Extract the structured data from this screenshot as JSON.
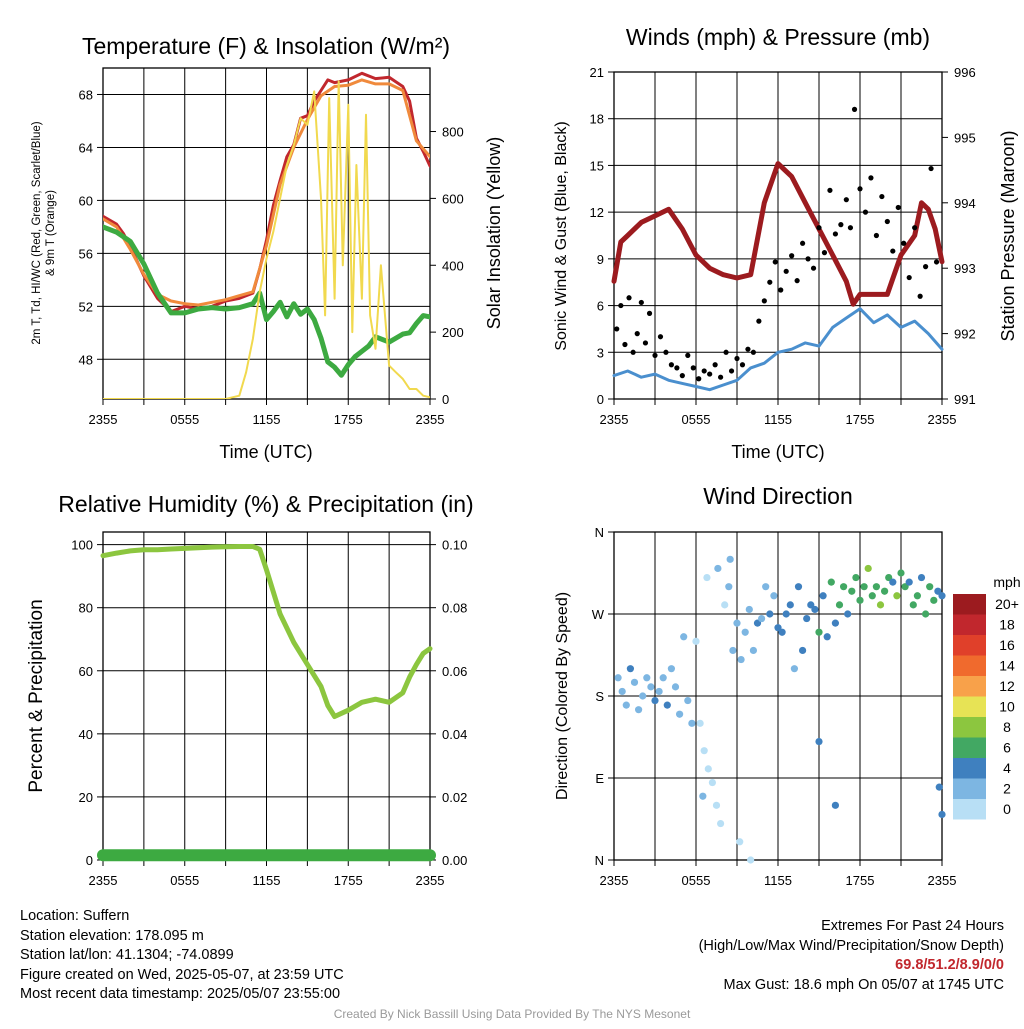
{
  "chart_data": [
    {
      "type": "line",
      "title": "Temperature (F) & Insolation (W/m²)",
      "xlabel": "Time (UTC)",
      "ylabel_lines": [
        "2m T, Td, HI/WC (Red, Green, Scarlet/Blue)",
        "& 9m T (Orange)"
      ],
      "y2label": "Solar Insolation (Yellow)",
      "x_ticks": [
        "2355",
        "0555",
        "1155",
        "1755",
        "2355"
      ],
      "ylim": [
        45,
        70
      ],
      "y_ticks": [
        48,
        52,
        56,
        60,
        64,
        68
      ],
      "y2lim": [
        0,
        990
      ],
      "y2_ticks": [
        0,
        200,
        400,
        600,
        800
      ],
      "x_hours": [
        0,
        24
      ],
      "grid": true,
      "series": [
        {
          "name": "2m T",
          "color": "#c1272d",
          "width": 3,
          "axis": "left",
          "x": [
            0,
            1,
            1.5,
            2,
            3,
            4,
            5,
            6,
            7,
            8,
            9,
            10,
            11,
            11.5,
            12,
            12.5,
            13,
            13.5,
            14,
            14.5,
            15,
            15.5,
            16,
            16.5,
            17,
            18,
            19,
            20,
            21,
            22,
            22.5,
            23,
            23.5,
            24
          ],
          "y": [
            58.8,
            58.2,
            57.5,
            56.5,
            54.3,
            52.6,
            51.6,
            52.0,
            51.8,
            52.0,
            52.4,
            52.6,
            53.0,
            54.8,
            57.0,
            59.6,
            61.5,
            63.3,
            64.2,
            66.2,
            66.4,
            67.5,
            68.3,
            69.1,
            68.9,
            69.1,
            69.6,
            69.2,
            69.3,
            68.6,
            67.5,
            64.7,
            63.7,
            62.6
          ]
        },
        {
          "name": "9m T",
          "color": "#f08a3c",
          "width": 3,
          "axis": "left",
          "x": [
            0,
            1,
            2,
            3,
            4,
            5,
            6,
            7,
            8,
            9,
            10,
            11,
            12,
            13,
            14,
            15,
            16,
            17,
            18,
            19,
            20,
            21,
            22,
            23,
            24
          ],
          "y": [
            58.6,
            58.0,
            56.3,
            54.4,
            52.9,
            52.4,
            52.2,
            52.1,
            52.3,
            52.5,
            52.8,
            53.1,
            56.6,
            61.2,
            64.0,
            66.1,
            67.9,
            68.6,
            68.7,
            69.1,
            68.8,
            68.8,
            68.3,
            64.5,
            63.3
          ]
        },
        {
          "name": "2m Td",
          "color": "#3daa41",
          "width": 5,
          "axis": "left",
          "x": [
            0,
            1,
            2,
            3,
            4,
            5,
            6,
            7,
            8,
            9,
            10,
            11,
            11.5,
            12,
            12.5,
            13,
            13.5,
            14,
            14.5,
            15,
            15.5,
            16,
            16.5,
            17,
            17.5,
            18,
            18.5,
            19,
            19.5,
            20,
            21,
            22,
            22.5,
            23,
            23.5,
            24
          ],
          "y": [
            58.0,
            57.6,
            56.9,
            55.2,
            53.0,
            51.5,
            51.5,
            51.8,
            51.9,
            51.8,
            51.9,
            52.2,
            53.0,
            51.0,
            51.6,
            52.3,
            51.2,
            52.2,
            51.4,
            51.8,
            51.0,
            49.6,
            47.8,
            47.4,
            46.8,
            47.6,
            48.2,
            48.6,
            49.0,
            49.7,
            49.3,
            49.9,
            50.0,
            50.7,
            51.3,
            51.2
          ]
        },
        {
          "name": "Solar Insolation",
          "color": "#f1d94e",
          "width": 2,
          "axis": "right",
          "x": [
            0,
            9,
            10,
            10.5,
            11,
            11.5,
            12,
            12.5,
            13,
            13.5,
            14,
            14.5,
            15,
            15.5,
            16,
            16.3,
            16.6,
            17,
            17.3,
            17.6,
            18,
            18.3,
            18.6,
            19,
            19.3,
            19.6,
            20,
            20.4,
            21,
            21.5,
            22,
            22.5,
            23,
            23.5,
            24
          ],
          "y": [
            0,
            0,
            10,
            80,
            180,
            320,
            420,
            500,
            600,
            700,
            760,
            840,
            820,
            920,
            600,
            250,
            900,
            300,
            950,
            400,
            880,
            200,
            700,
            300,
            850,
            250,
            150,
            400,
            100,
            80,
            60,
            30,
            30,
            10,
            5
          ]
        }
      ]
    },
    {
      "type": "line",
      "title": "Winds (mph) & Pressure (mb)",
      "xlabel": "Time (UTC)",
      "ylabel": "Sonic Wind & Gust (Blue, Black)",
      "y2label": "Station Pressure (Maroon)",
      "x_ticks": [
        "2355",
        "0555",
        "1155",
        "1755",
        "2355"
      ],
      "ylim": [
        0,
        21
      ],
      "y_ticks": [
        0,
        3,
        6,
        9,
        12,
        15,
        18,
        21
      ],
      "y2lim": [
        991,
        996
      ],
      "y2_ticks": [
        991,
        992,
        993,
        994,
        995,
        996
      ],
      "x_hours": [
        0,
        24
      ],
      "grid": true,
      "series": [
        {
          "name": "Sonic Wind",
          "color": "#4a8fce",
          "width": 3,
          "axis": "left",
          "x": [
            0,
            1,
            2,
            3,
            4,
            5,
            6,
            7,
            8,
            9,
            10,
            11,
            12,
            13,
            14,
            15,
            16,
            17,
            18,
            19,
            20,
            21,
            22,
            23,
            24
          ],
          "y": [
            1.5,
            1.8,
            1.4,
            1.6,
            1.2,
            1.0,
            0.8,
            0.6,
            0.9,
            1.2,
            2.0,
            2.3,
            3.0,
            3.2,
            3.6,
            3.4,
            4.6,
            5.2,
            5.8,
            4.9,
            5.4,
            4.6,
            5.0,
            4.2,
            3.2
          ]
        },
        {
          "name": "Station Pressure",
          "color": "#9c1b1f",
          "width": 5,
          "axis": "right",
          "x": [
            0,
            0.5,
            1,
            2,
            3,
            4,
            5,
            6,
            7,
            8,
            9,
            10,
            11,
            12,
            12.5,
            13,
            14,
            15,
            16,
            17,
            17.5,
            18,
            19,
            20,
            21,
            22,
            22.5,
            23,
            23.5,
            24
          ],
          "y": [
            992.8,
            993.4,
            993.5,
            993.7,
            993.8,
            993.9,
            993.6,
            993.2,
            993.0,
            992.9,
            992.85,
            992.9,
            994.0,
            994.6,
            994.5,
            994.4,
            994.0,
            993.6,
            993.2,
            992.8,
            992.45,
            992.6,
            992.6,
            992.6,
            993.2,
            993.5,
            994.0,
            993.9,
            993.6,
            993.1
          ]
        },
        {
          "name": "Gust",
          "color": "#000000",
          "mode": "markers",
          "axis": "left",
          "x": [
            0.2,
            0.5,
            0.8,
            1.1,
            1.4,
            1.7,
            2.0,
            2.3,
            2.6,
            3.0,
            3.4,
            3.8,
            4.2,
            4.6,
            5.0,
            5.4,
            5.8,
            6.2,
            6.6,
            7.0,
            7.4,
            7.8,
            8.2,
            8.6,
            9.0,
            9.4,
            9.8,
            10.2,
            10.6,
            11.0,
            11.4,
            11.8,
            12.2,
            12.6,
            13.0,
            13.4,
            13.8,
            14.2,
            14.6,
            15.0,
            15.4,
            15.8,
            16.2,
            16.6,
            17.0,
            17.3,
            17.6,
            18.0,
            18.4,
            18.8,
            19.2,
            19.6,
            20.0,
            20.4,
            20.8,
            21.2,
            21.6,
            22.0,
            22.4,
            22.8,
            23.2,
            23.6
          ],
          "y": [
            4.5,
            6.0,
            3.5,
            6.5,
            3.0,
            4.2,
            6.2,
            3.6,
            5.5,
            2.8,
            4.0,
            3.0,
            2.2,
            2.0,
            1.5,
            2.8,
            2.0,
            1.3,
            1.8,
            1.6,
            2.2,
            1.4,
            3.0,
            1.8,
            2.6,
            2.2,
            3.2,
            3.0,
            5.0,
            6.3,
            7.5,
            8.8,
            7.0,
            8.2,
            9.2,
            7.6,
            10.0,
            9.0,
            8.4,
            11.0,
            9.4,
            13.4,
            10.6,
            11.2,
            12.8,
            11.0,
            18.6,
            13.5,
            12.0,
            14.2,
            10.5,
            13.0,
            11.4,
            9.5,
            12.3,
            10.0,
            7.8,
            11.0,
            6.6,
            8.5,
            14.8,
            8.8
          ]
        }
      ]
    },
    {
      "type": "line",
      "title": "Relative Humidity (%) & Precipitation (in)",
      "ylabel": "Percent & Precipitation",
      "x_ticks": [
        "2355",
        "0555",
        "1155",
        "1755",
        "2355"
      ],
      "ylim": [
        0,
        104
      ],
      "y_ticks": [
        0,
        20,
        40,
        60,
        80,
        100
      ],
      "y2lim": [
        0,
        0.104
      ],
      "y2_ticks": [
        "0.00",
        "0.02",
        "0.04",
        "0.06",
        "0.08",
        "0.10"
      ],
      "x_hours": [
        0,
        24
      ],
      "grid": true,
      "series": [
        {
          "name": "Relative Humidity",
          "color": "#8cc63f",
          "width": 5,
          "axis": "left",
          "x": [
            0,
            1,
            2,
            3,
            4,
            5,
            6,
            7,
            8,
            9,
            10,
            11,
            11.5,
            12,
            12.5,
            13,
            14,
            15,
            16,
            16.5,
            17,
            18,
            19,
            20,
            21,
            22,
            22.5,
            23,
            23.5,
            24
          ],
          "y": [
            96.5,
            97.3,
            98.0,
            98.4,
            98.4,
            98.6,
            98.8,
            99.0,
            99.2,
            99.3,
            99.4,
            99.4,
            98.5,
            92.0,
            85.0,
            78.0,
            69.0,
            62.0,
            55.0,
            49.0,
            45.5,
            47.5,
            50.0,
            51.0,
            50.0,
            53.0,
            58.0,
            62.0,
            65.5,
            67.0
          ]
        },
        {
          "name": "Precipitation",
          "color": "#3daa41",
          "width": 12,
          "axis": "left",
          "x": [
            0,
            24
          ],
          "y": [
            1.5,
            1.5
          ]
        }
      ]
    },
    {
      "type": "scatter",
      "title": "Wind Direction",
      "ylabel": "Direction (Colored By Speed)",
      "x_ticks": [
        "2355",
        "0555",
        "1155",
        "1755",
        "2355"
      ],
      "y_ticks": [
        "N",
        "E",
        "S",
        "W",
        "N"
      ],
      "ylim": [
        0,
        360
      ],
      "x_hours": [
        0,
        24
      ],
      "grid": true,
      "legend": {
        "title": "mph",
        "placement": "right",
        "labels": [
          "20+",
          "18",
          "16",
          "14",
          "12",
          "10",
          "8",
          "6",
          "4",
          "2",
          "0"
        ],
        "colors": [
          "#9c1b1f",
          "#c1272d",
          "#e0402a",
          "#f06a2d",
          "#f8a14a",
          "#e7e355",
          "#8cc63f",
          "#42a863",
          "#3f80bf",
          "#7db6e2",
          "#b8dff5"
        ]
      },
      "points_x": [
        0.3,
        0.6,
        0.9,
        1.2,
        1.5,
        1.8,
        2.1,
        2.4,
        2.7,
        3.0,
        3.3,
        3.6,
        3.9,
        4.2,
        4.5,
        4.8,
        5.1,
        5.4,
        5.7,
        6.0,
        6.3,
        6.6,
        6.9,
        7.2,
        7.5,
        7.8,
        8.1,
        8.4,
        8.7,
        9.0,
        9.3,
        9.6,
        9.9,
        10.2,
        10.5,
        10.8,
        11.1,
        11.4,
        11.7,
        12.0,
        12.3,
        12.6,
        12.9,
        13.2,
        13.5,
        13.8,
        14.1,
        14.4,
        14.7,
        15.0,
        15.3,
        15.6,
        15.9,
        16.2,
        16.5,
        16.8,
        17.1,
        17.4,
        17.7,
        18.0,
        18.3,
        18.6,
        18.9,
        19.2,
        19.5,
        19.8,
        20.1,
        20.4,
        20.7,
        21.0,
        21.3,
        21.6,
        21.9,
        22.2,
        22.5,
        22.8,
        23.1,
        23.4,
        23.7,
        24.0,
        7.6,
        6.8,
        8.5,
        15.0,
        24.0,
        23.8,
        16.2,
        6.5,
        9.2,
        10.0
      ],
      "points_y": [
        200,
        185,
        170,
        210,
        195,
        165,
        180,
        200,
        190,
        175,
        185,
        200,
        170,
        210,
        190,
        160,
        245,
        175,
        150,
        240,
        150,
        120,
        100,
        85,
        60,
        40,
        280,
        300,
        230,
        260,
        220,
        250,
        275,
        230,
        260,
        265,
        300,
        270,
        290,
        255,
        250,
        270,
        280,
        210,
        300,
        230,
        265,
        280,
        275,
        250,
        290,
        245,
        305,
        260,
        280,
        300,
        270,
        295,
        310,
        285,
        300,
        320,
        290,
        300,
        280,
        295,
        310,
        305,
        290,
        315,
        300,
        305,
        280,
        290,
        310,
        270,
        300,
        285,
        295,
        290,
        320,
        310,
        330,
        130,
        50,
        80,
        60,
        70,
        20,
        0
      ],
      "points_speed": [
        1,
        2,
        1,
        3,
        1,
        2,
        1,
        2,
        1,
        3,
        2,
        1,
        3,
        2,
        1,
        2,
        1,
        1,
        1,
        0,
        0,
        0,
        0,
        0,
        0,
        0,
        0,
        1,
        1,
        1,
        1,
        2,
        1,
        2,
        3,
        2,
        1,
        3,
        2,
        3,
        4,
        3,
        3,
        2,
        3,
        4,
        3,
        4,
        3,
        5,
        3,
        4,
        6,
        3,
        5,
        6,
        4,
        6,
        5,
        6,
        5,
        7,
        5,
        6,
        7,
        5,
        6,
        4,
        7,
        5,
        6,
        4,
        5,
        6,
        4,
        5,
        5,
        6,
        4,
        3,
        1,
        0,
        1,
        4,
        4,
        3,
        4,
        1,
        0,
        0
      ]
    }
  ],
  "info_left": {
    "location": "Location: Suffern",
    "elevation": "Station elevation: 178.095 m",
    "latlon": "Station lat/lon: 41.1304; -74.0899",
    "created": "Figure created on Wed, 2025-05-07, at 23:59 UTC",
    "recent": "Most recent data timestamp: 2025/05/07 23:55:00"
  },
  "info_right": {
    "line1": "Extremes For Past 24 Hours",
    "line2": "(High/Low/Max Wind/Precipitation/Snow Depth)",
    "values": "69.8/51.2/8.9/0/0",
    "gust": "Max Gust: 18.6 mph On 05/07 at 1745 UTC"
  },
  "credit": "Created By Nick Bassill Using Data Provided By The NYS Mesonet"
}
